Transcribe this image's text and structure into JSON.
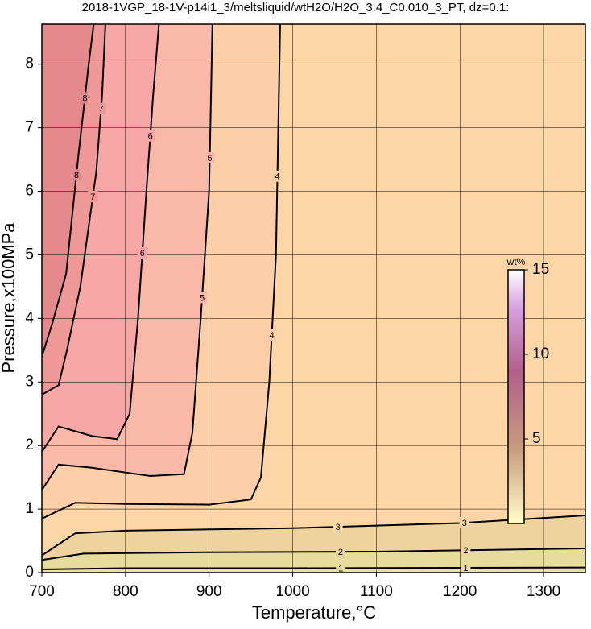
{
  "chart_data": {
    "type": "contour",
    "title": "2018-1VGP_18-1V-p14i1_3/meltsliquid/wtH2O/H2O_3.4_C0.010_3_PT, dz=0.1:",
    "x_label": "Temperature,°C",
    "y_label": "Pressure,x100MPa",
    "xlim": [
      700,
      1350
    ],
    "ylim": [
      0,
      8.63
    ],
    "xticks": [
      700,
      800,
      900,
      1000,
      1100,
      1200,
      1300
    ],
    "yticks": [
      0,
      1,
      2,
      3,
      4,
      5,
      6,
      7,
      8
    ],
    "grid": true,
    "background_color": "#e9e2a4",
    "series": [
      {
        "name": "1",
        "color": "#e6dc9c",
        "x": [
          700,
          800,
          1000,
          1350
        ],
        "y": [
          0.05,
          0.07,
          0.07,
          0.08
        ]
      },
      {
        "name": "2",
        "color": "#efd39e",
        "x": [
          700,
          750,
          900,
          1100,
          1350
        ],
        "y": [
          0.2,
          0.3,
          0.32,
          0.33,
          0.38
        ]
      },
      {
        "name": "3",
        "color": "#fdd6a8",
        "x": [
          700,
          740,
          800,
          1000,
          1200,
          1350
        ],
        "y": [
          0.27,
          0.62,
          0.66,
          0.7,
          0.78,
          0.9
        ]
      },
      {
        "name": "4",
        "color": "#fccfa8",
        "x": [
          700,
          740,
          800,
          900,
          950,
          962,
          972,
          980,
          985
        ],
        "y": [
          0.85,
          1.1,
          1.08,
          1.07,
          1.15,
          1.5,
          3,
          5,
          8.63
        ]
      },
      {
        "name": "5",
        "color": "#fab8a8",
        "x": [
          700,
          720,
          760,
          830,
          870,
          880,
          890,
          900,
          904
        ],
        "y": [
          1.3,
          1.7,
          1.65,
          1.52,
          1.55,
          2.2,
          4,
          6,
          8.63
        ]
      },
      {
        "name": "6",
        "color": "#f6a7a6",
        "x": [
          700,
          720,
          760,
          790,
          805,
          815,
          825,
          833,
          840
        ],
        "y": [
          1.9,
          2.3,
          2.15,
          2.1,
          2.5,
          4,
          6,
          7.5,
          8.63
        ]
      },
      {
        "name": "7",
        "color": "#ef9898",
        "x": [
          700,
          720,
          730,
          746,
          765,
          772,
          776
        ],
        "y": [
          2.8,
          2.95,
          3.5,
          4.5,
          6.3,
          7.5,
          8.63
        ]
      },
      {
        "name": "8",
        "color": "#e48a8c",
        "x": [
          700,
          712,
          729,
          744,
          756,
          762
        ],
        "y": [
          3.4,
          3.9,
          4.7,
          6.6,
          8.0,
          8.63
        ]
      }
    ],
    "colorbar": {
      "label": "wt%",
      "lim": [
        0,
        15
      ],
      "ticks": [
        5,
        10,
        15
      ]
    }
  }
}
